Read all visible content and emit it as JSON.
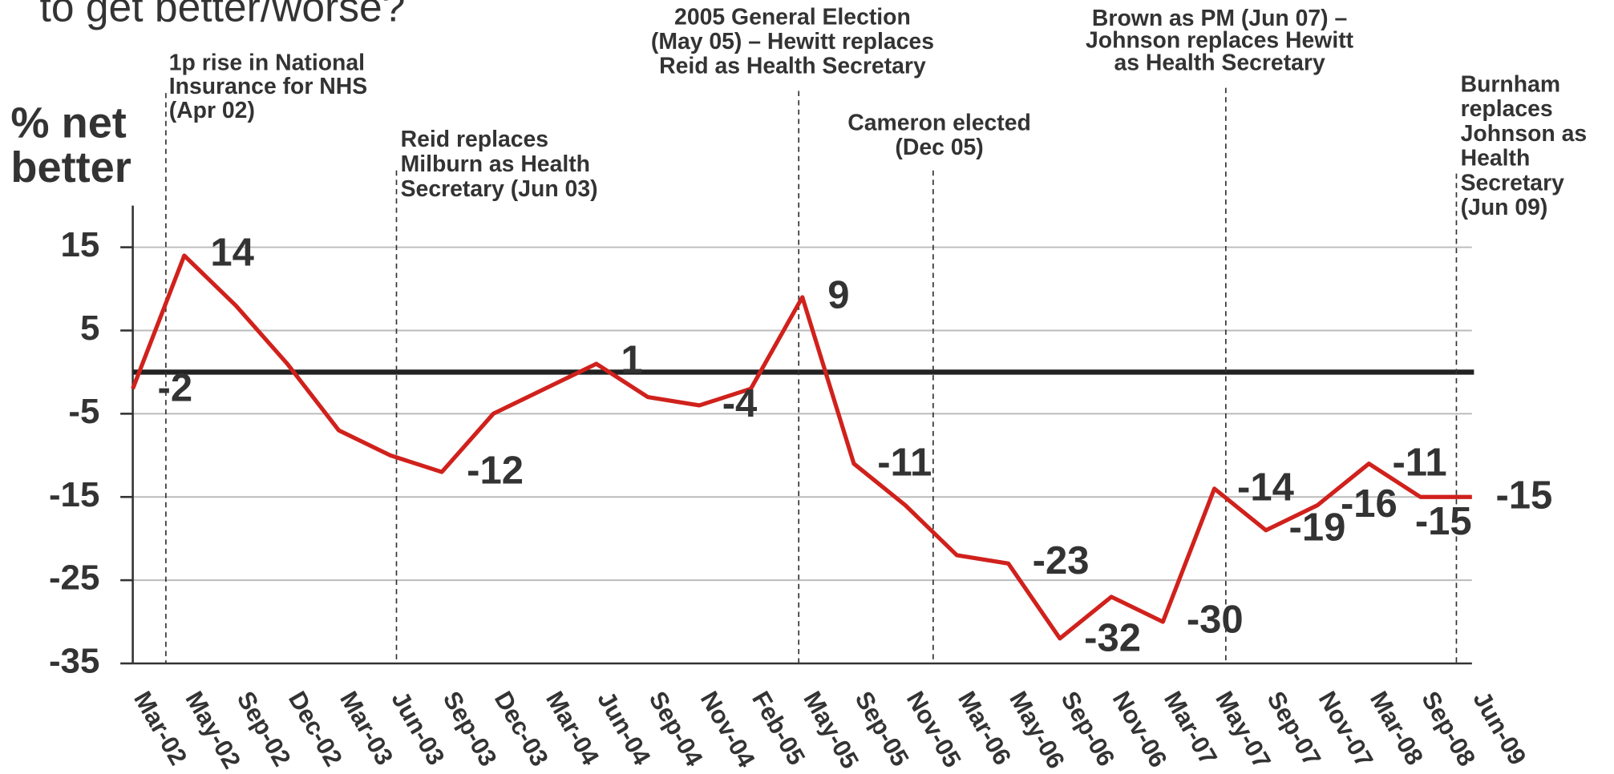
{
  "chart_data": {
    "type": "line",
    "title": "to get better/worse?",
    "y_label": [
      "% net",
      "better"
    ],
    "categories": [
      "Mar-02",
      "May-02",
      "Sep-02",
      "Dec-02",
      "Mar-03",
      "Jun-03",
      "Sep-03",
      "Dec-03",
      "Mar-04",
      "Jun-04",
      "Sep-04",
      "Nov-04",
      "Feb-05",
      "May-05",
      "Sep-05",
      "Nov-05",
      "Mar-06",
      "May-06",
      "Sep-06",
      "Nov-06",
      "Mar-07",
      "May-07",
      "Sep-07",
      "Nov-07",
      "Mar-08",
      "Sep-08",
      "Jun-09"
    ],
    "series": [
      {
        "name": "% net better",
        "color": "#d0211c",
        "values": [
          -2,
          14,
          8,
          1,
          -7,
          -10,
          -12,
          -5,
          -2,
          1,
          -3,
          -4,
          -2,
          9,
          -11,
          -16,
          -22,
          -23,
          -32,
          -27,
          -30,
          -14,
          -19,
          -16,
          -11,
          -15,
          -15
        ],
        "value_labels": [
          "-2",
          "14",
          null,
          null,
          null,
          null,
          "-12",
          null,
          null,
          "1",
          null,
          "-4",
          null,
          "9",
          "-11",
          null,
          null,
          "-23",
          "-32",
          null,
          "-30",
          "-14",
          "-19",
          "-16",
          "-11",
          "-15",
          "-15"
        ]
      }
    ],
    "ylim": [
      -35,
      20
    ],
    "yticks": [
      15,
      5,
      -5,
      -15,
      -25,
      -35
    ],
    "grid": true,
    "annotations": [
      {
        "lines": [
          "1p rise in National",
          "Insurance for NHS",
          "(Apr 02)"
        ]
      },
      {
        "lines": [
          "Reid replaces",
          "Milburn as Health",
          "Secretary (Jun 03)"
        ]
      },
      {
        "lines": [
          "2005 General Election",
          "(May 05) – Hewitt replaces",
          "Reid as Health Secretary"
        ]
      },
      {
        "lines": [
          "Cameron elected",
          "(Dec 05)"
        ]
      },
      {
        "lines": [
          "Brown as PM (Jun 07) –",
          "Johnson replaces Hewitt",
          "as Health Secretary"
        ]
      },
      {
        "lines": [
          "Burnham",
          "replaces",
          "Johnson as",
          "Health",
          "Secretary",
          "(Jun 09)"
        ]
      }
    ]
  }
}
